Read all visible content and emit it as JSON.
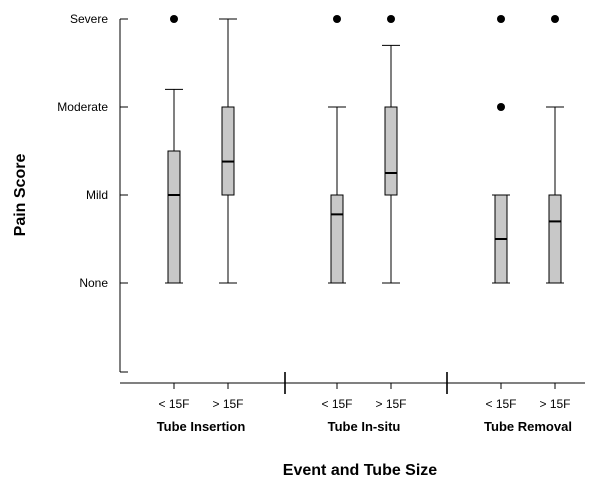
{
  "chart_data": {
    "type": "box",
    "title": "",
    "ylabel": "Pain Score",
    "xlabel": "Event and Tube Size",
    "y_scale": {
      "min": -1,
      "max": 3
    },
    "y_ticks": [
      {
        "value": 3,
        "label": "Severe"
      },
      {
        "value": 2,
        "label": "Moderate"
      },
      {
        "value": 1,
        "label": "Mild"
      },
      {
        "value": 0,
        "label": "None"
      }
    ],
    "groups": [
      {
        "label": "Tube Insertion"
      },
      {
        "label": "Tube In-situ"
      },
      {
        "label": "Tube Removal"
      }
    ],
    "boxes": [
      {
        "group": 0,
        "label": "< 15F",
        "min": 0,
        "q1": 0,
        "median": 1.0,
        "q3": 1.5,
        "max": 2.2,
        "outliers": [
          3
        ]
      },
      {
        "group": 0,
        "label": "> 15F",
        "min": 0,
        "q1": 1.0,
        "median": 1.38,
        "q3": 2.0,
        "max": 3.0,
        "outliers": []
      },
      {
        "group": 1,
        "label": "< 15F",
        "min": 0,
        "q1": 0,
        "median": 0.78,
        "q3": 1.0,
        "max": 2.0,
        "outliers": [
          3
        ]
      },
      {
        "group": 1,
        "label": "> 15F",
        "min": 0,
        "q1": 1.0,
        "median": 1.25,
        "q3": 2.0,
        "max": 2.7,
        "outliers": [
          3
        ]
      },
      {
        "group": 2,
        "label": "< 15F",
        "min": 0,
        "q1": 0,
        "median": 0.5,
        "q3": 1.0,
        "max": 1.0,
        "outliers": [
          2,
          3
        ]
      },
      {
        "group": 2,
        "label": "> 15F",
        "min": 0,
        "q1": 0,
        "median": 0.7,
        "q3": 1.0,
        "max": 2.0,
        "outliers": [
          3
        ]
      }
    ],
    "grid": false,
    "legend": "none"
  },
  "colors": {
    "box_fill": "#c8c8c8",
    "stroke": "#000000",
    "background": "#ffffff"
  }
}
